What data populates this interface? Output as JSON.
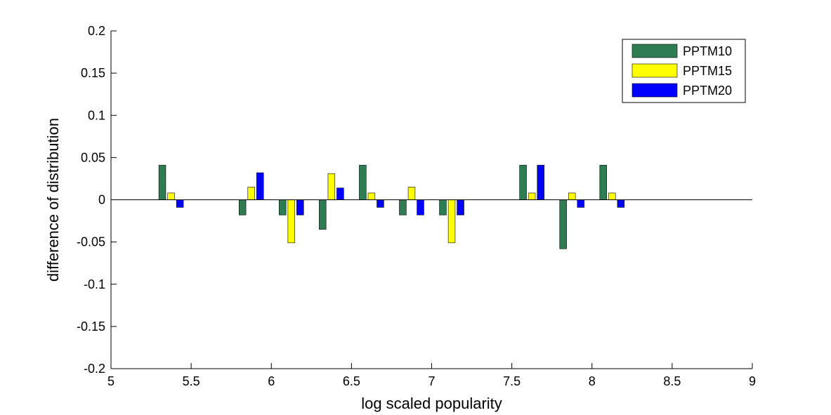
{
  "chart_data": {
    "type": "bar",
    "xlabel": "log scaled popularity",
    "ylabel": "difference of distribution",
    "xlim": [
      5,
      9
    ],
    "ylim": [
      -0.2,
      0.2
    ],
    "xticks": [
      "5",
      "5.5",
      "6",
      "6.5",
      "7",
      "7.5",
      "8",
      "8.5",
      "9"
    ],
    "yticks": [
      "-0.2",
      "-0.15",
      "-0.1",
      "-0.05",
      "0",
      "0.05",
      "0.1",
      "0.15",
      "0.2"
    ],
    "legend_position": "top-right",
    "grid": false,
    "x": [
      5.375,
      5.875,
      6.125,
      6.375,
      6.625,
      6.875,
      7.125,
      7.625,
      7.875,
      8.125
    ],
    "series": [
      {
        "name": "PPTM10",
        "color": "#2e7d52",
        "values": [
          0.041,
          -0.018,
          -0.018,
          -0.035,
          0.041,
          -0.018,
          -0.018,
          0.041,
          -0.058,
          0.041
        ]
      },
      {
        "name": "PPTM15",
        "color": "#ffff00",
        "values": [
          0.008,
          0.015,
          -0.051,
          0.031,
          0.008,
          0.015,
          -0.051,
          0.008,
          0.008,
          0.008
        ]
      },
      {
        "name": "PPTM20",
        "color": "#0000ff",
        "values": [
          -0.009,
          0.032,
          -0.018,
          0.014,
          -0.009,
          -0.018,
          -0.018,
          0.041,
          -0.009,
          -0.009
        ]
      }
    ]
  }
}
